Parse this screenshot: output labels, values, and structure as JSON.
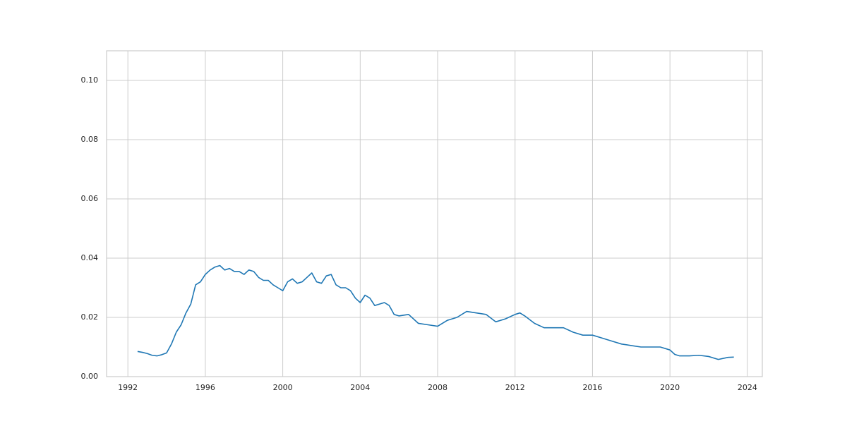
{
  "chart_data": {
    "type": "line",
    "color": "#1f77b4",
    "grid": true,
    "x": [
      1992.5,
      1992.75,
      1993.0,
      1993.25,
      1993.5,
      1993.75,
      1994.0,
      1994.25,
      1994.5,
      1994.75,
      1995.0,
      1995.25,
      1995.5,
      1995.75,
      1996.0,
      1996.25,
      1996.5,
      1996.75,
      1997.0,
      1997.25,
      1997.5,
      1997.75,
      1998.0,
      1998.25,
      1998.5,
      1998.75,
      1999.0,
      1999.25,
      1999.5,
      1999.75,
      2000.0,
      2000.25,
      2000.5,
      2000.75,
      2001.0,
      2001.25,
      2001.5,
      2001.75,
      2002.0,
      2002.25,
      2002.5,
      2002.75,
      2003.0,
      2003.25,
      2003.5,
      2003.75,
      2004.0,
      2004.25,
      2004.5,
      2004.75,
      2005.0,
      2005.25,
      2005.5,
      2005.75,
      2006.0,
      2006.5,
      2007.0,
      2007.5,
      2008.0,
      2008.5,
      2009.0,
      2009.5,
      2010.0,
      2010.5,
      2011.0,
      2011.5,
      2012.0,
      2012.25,
      2012.5,
      2013.0,
      2013.5,
      2014.0,
      2014.5,
      2015.0,
      2015.5,
      2016.0,
      2016.5,
      2017.0,
      2017.5,
      2018.0,
      2018.5,
      2019.0,
      2019.5,
      2020.0,
      2020.25,
      2020.5,
      2021.0,
      2021.5,
      2022.0,
      2022.5,
      2023.0,
      2023.3
    ],
    "values": [
      0.0085,
      0.0082,
      0.0078,
      0.0072,
      0.007,
      0.0074,
      0.008,
      0.011,
      0.015,
      0.0175,
      0.0215,
      0.0245,
      0.031,
      0.032,
      0.0345,
      0.036,
      0.037,
      0.0375,
      0.036,
      0.0365,
      0.0355,
      0.0355,
      0.0345,
      0.036,
      0.0355,
      0.0335,
      0.0325,
      0.0325,
      0.031,
      0.03,
      0.029,
      0.032,
      0.033,
      0.0315,
      0.032,
      0.0335,
      0.035,
      0.032,
      0.0315,
      0.034,
      0.0345,
      0.031,
      0.03,
      0.03,
      0.029,
      0.0265,
      0.025,
      0.0275,
      0.0265,
      0.024,
      0.0245,
      0.025,
      0.024,
      0.021,
      0.0205,
      0.021,
      0.018,
      0.0175,
      0.017,
      0.019,
      0.02,
      0.022,
      0.0215,
      0.021,
      0.0185,
      0.0195,
      0.021,
      0.0215,
      0.0205,
      0.018,
      0.0165,
      0.0165,
      0.0165,
      0.015,
      0.014,
      0.014,
      0.013,
      0.012,
      0.011,
      0.0105,
      0.01,
      0.01,
      0.01,
      0.009,
      0.0075,
      0.007,
      0.007,
      0.0072,
      0.0068,
      0.0058,
      0.0065,
      0.0066
    ],
    "xlim": [
      1990.9,
      2024.77
    ],
    "ylim": [
      0,
      0.11
    ],
    "xticks": [
      1992,
      1996,
      2000,
      2004,
      2008,
      2012,
      2016,
      2020,
      2024
    ],
    "yticks": [
      {
        "value": 0,
        "label": "0.00"
      },
      {
        "value": 0.02,
        "label": "0.02"
      },
      {
        "value": 0.04,
        "label": "0.04"
      },
      {
        "value": 0.06,
        "label": "0.06"
      },
      {
        "value": 0.08,
        "label": "0.08"
      },
      {
        "value": 0.1,
        "label": "0.10"
      }
    ]
  }
}
